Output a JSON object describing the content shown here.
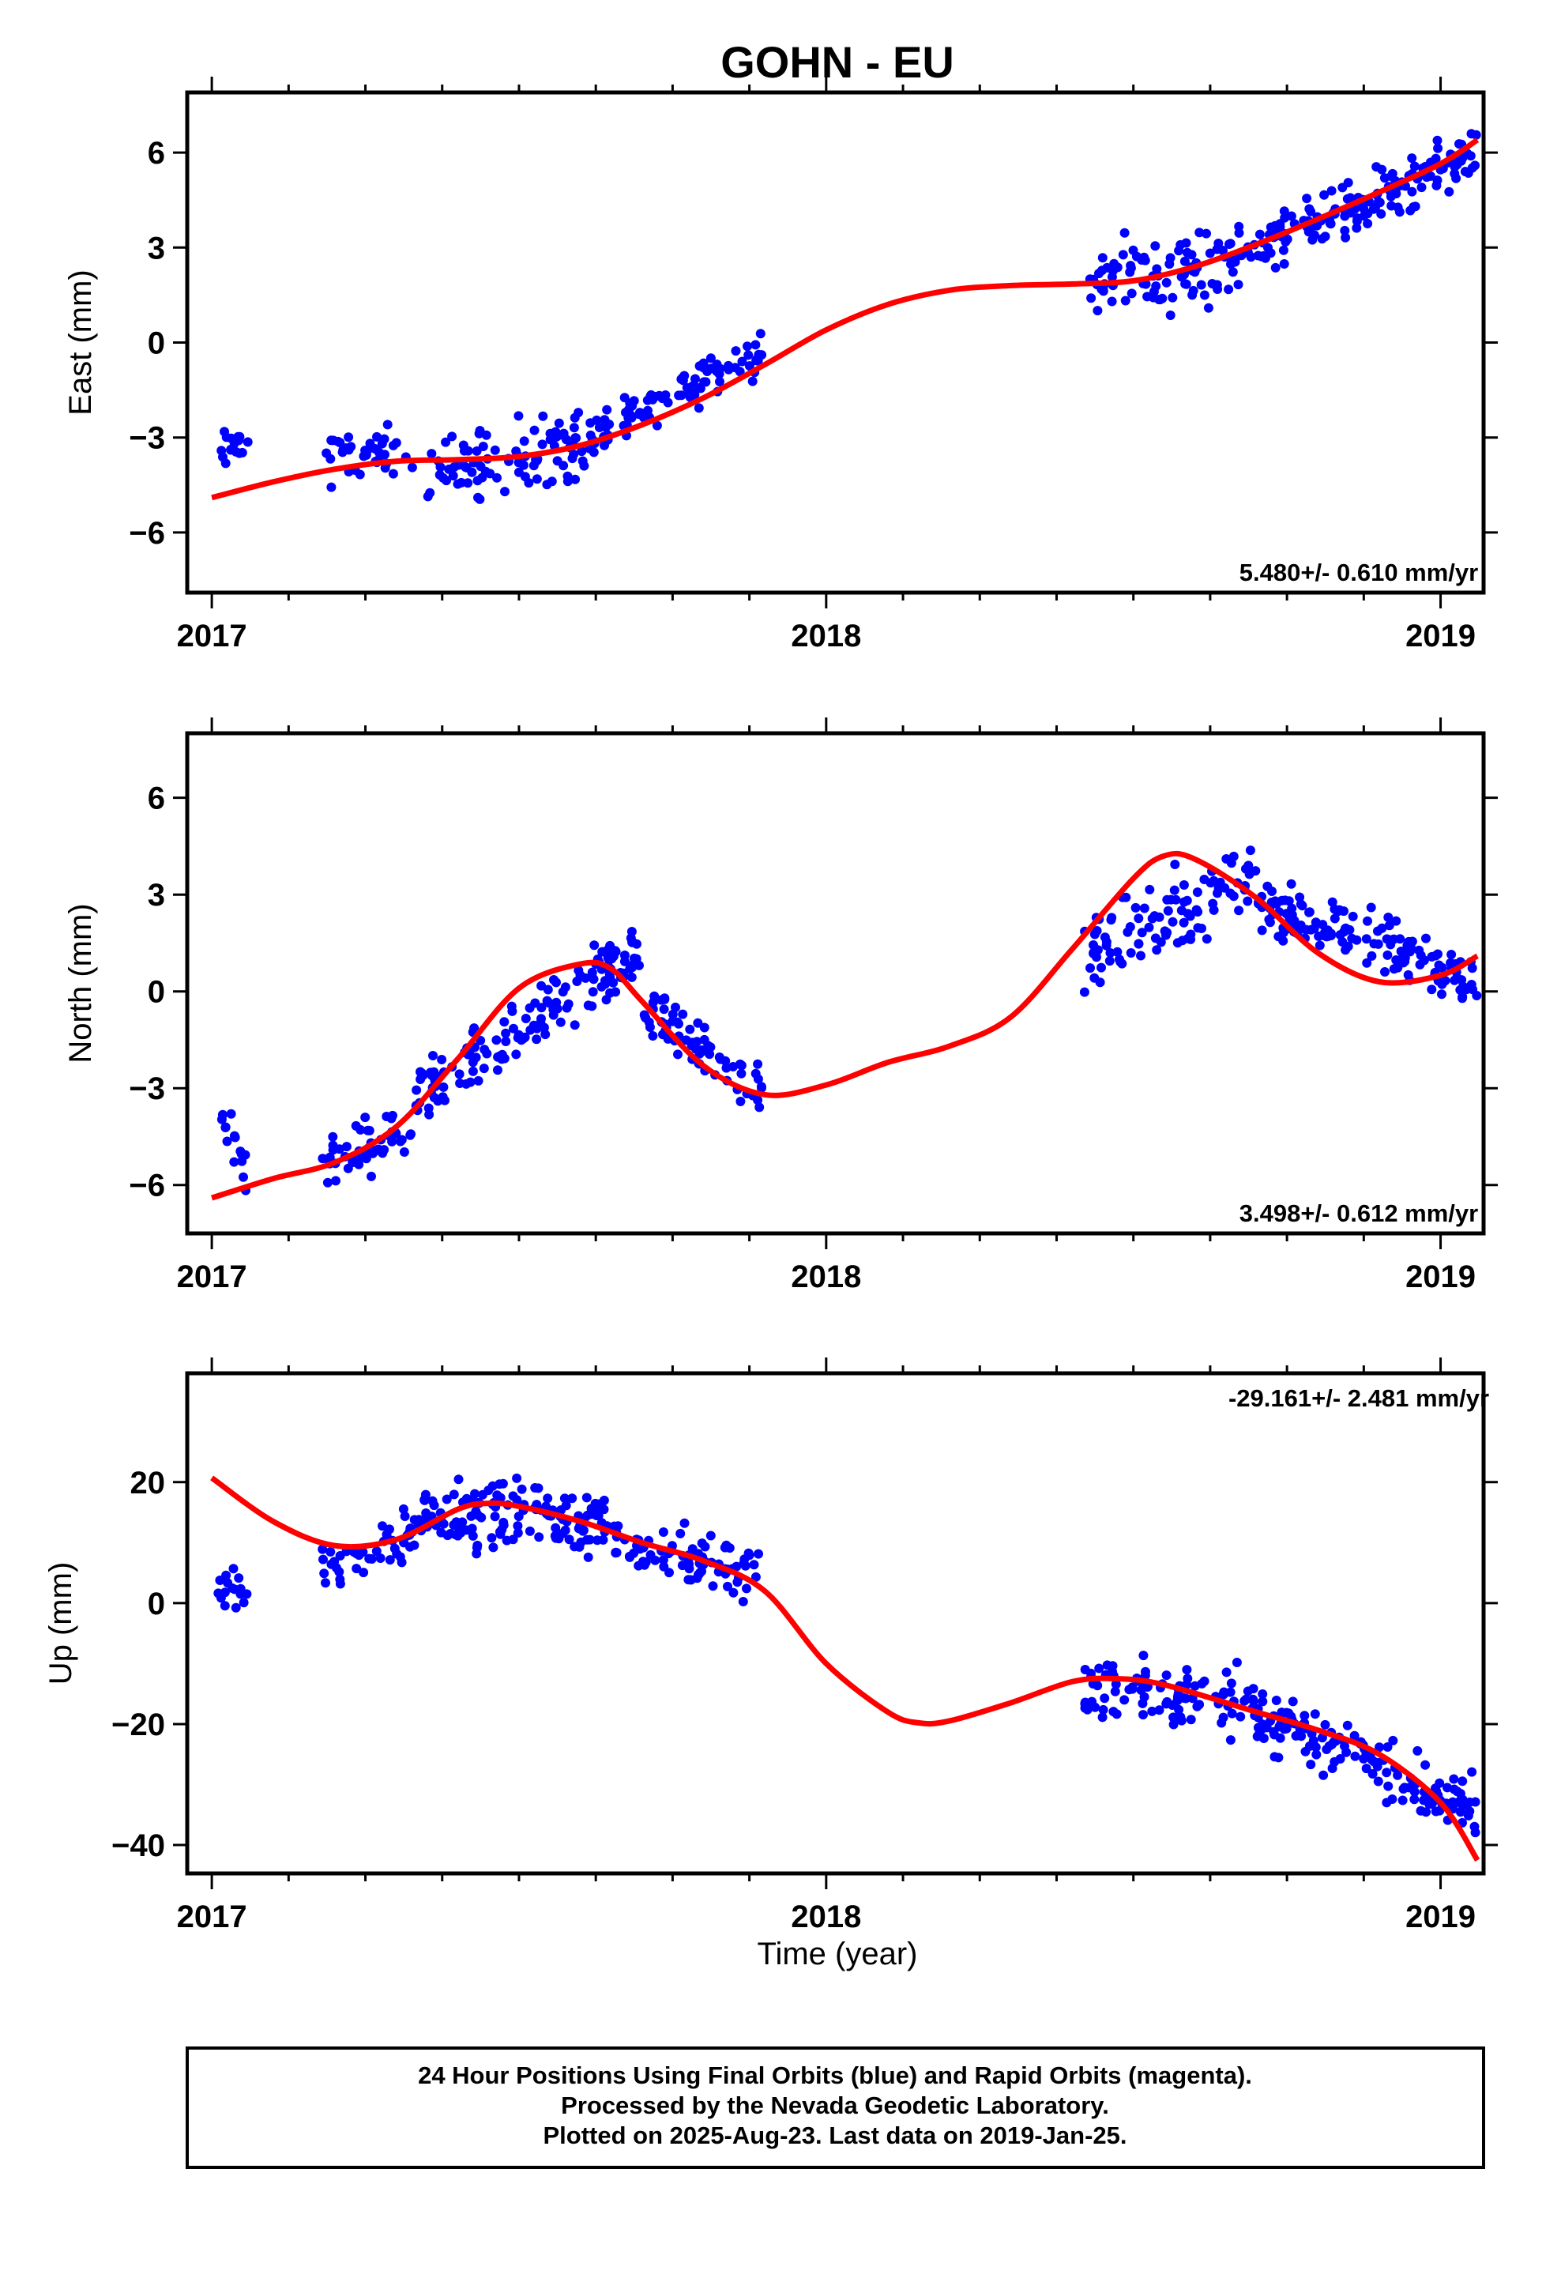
{
  "title": "GOHN - EU",
  "x_axis_label": "Time (year)",
  "footer": {
    "lines": [
      "24 Hour Positions Using Final Orbits (blue) and Rapid Orbits (magenta).",
      "Processed by the Nevada Geodetic Laboratory.",
      "Plotted on 2025-Aug-23. Last data on 2019-Jan-25."
    ]
  },
  "colors": {
    "final_orbits": "#0000ff",
    "fit_line": "#ff0000",
    "frame": "#000000"
  },
  "chart_data": [
    {
      "type": "scatter",
      "ylabel": "East (mm)",
      "rate_label": "5.480+/- 0.610 mm/yr",
      "xlim": [
        2016.96,
        2019.07
      ],
      "ylim": [
        -7.9,
        7.9
      ],
      "x_ticks": [
        2017,
        2018,
        2019
      ],
      "y_ticks": [
        -6,
        -3,
        0,
        3,
        6
      ],
      "grid": false,
      "series": [
        {
          "name": "Final Orbits",
          "kind": "points",
          "clusters": [
            {
              "t0": 2017.01,
              "t1": 2017.06,
              "n": 16,
              "y0": -3.5,
              "y1": -3.1,
              "amp": 0.9
            },
            {
              "t0": 2017.18,
              "t1": 2017.33,
              "n": 40,
              "y0": -3.7,
              "y1": -3.4,
              "amp": 1.2
            },
            {
              "t0": 2017.35,
              "t1": 2017.65,
              "n": 110,
              "y0": -4.2,
              "y1": -3.0,
              "amp": 1.6
            },
            {
              "t0": 2017.67,
              "t1": 2017.9,
              "n": 80,
              "y0": -2.3,
              "y1": -0.3,
              "amp": 1.0
            },
            {
              "t0": 2018.42,
              "t1": 2018.68,
              "n": 95,
              "y0": 2.0,
              "y1": 2.6,
              "amp": 1.7
            },
            {
              "t0": 2018.68,
              "t1": 2019.06,
              "n": 150,
              "y0": 2.8,
              "y1": 6.0,
              "amp": 1.2
            }
          ]
        },
        {
          "name": "Fit",
          "kind": "line",
          "x": [
            2017.0,
            2017.1,
            2017.2,
            2017.3,
            2017.4,
            2017.5,
            2017.6,
            2017.7,
            2017.8,
            2017.9,
            2018.0,
            2018.1,
            2018.2,
            2018.3,
            2018.4,
            2018.5,
            2018.6,
            2018.7,
            2018.8,
            2018.9,
            2019.0,
            2019.06
          ],
          "y": [
            -4.9,
            -4.4,
            -4.0,
            -3.75,
            -3.7,
            -3.6,
            -3.25,
            -2.6,
            -1.75,
            -0.7,
            0.4,
            1.2,
            1.65,
            1.8,
            1.85,
            1.95,
            2.4,
            3.1,
            3.9,
            4.75,
            5.65,
            6.4
          ]
        }
      ]
    },
    {
      "type": "scatter",
      "ylabel": "North (mm)",
      "rate_label": "3.498+/- 0.612 mm/yr",
      "xlim": [
        2016.96,
        2019.07
      ],
      "ylim": [
        -7.5,
        8.0
      ],
      "x_ticks": [
        2017,
        2018,
        2019
      ],
      "y_ticks": [
        -6,
        -3,
        0,
        3,
        6
      ],
      "grid": false,
      "series": [
        {
          "name": "Final Orbits",
          "kind": "points",
          "clusters": [
            {
              "t0": 2017.01,
              "t1": 2017.06,
              "n": 16,
              "y0": -3.5,
              "y1": -5.5,
              "amp": 1.2
            },
            {
              "t0": 2017.18,
              "t1": 2017.33,
              "n": 50,
              "y0": -5.4,
              "y1": -4.4,
              "amp": 1.2
            },
            {
              "t0": 2017.33,
              "t1": 2017.7,
              "n": 150,
              "y0": -3.5,
              "y1": 1.3,
              "amp": 1.5
            },
            {
              "t0": 2017.7,
              "t1": 2017.9,
              "n": 70,
              "y0": -0.3,
              "y1": -3.3,
              "amp": 1.3
            },
            {
              "t0": 2018.42,
              "t1": 2018.7,
              "n": 100,
              "y0": 1.0,
              "y1": 3.6,
              "amp": 1.8
            },
            {
              "t0": 2018.7,
              "t1": 2019.06,
              "n": 150,
              "y0": 2.8,
              "y1": 0.3,
              "amp": 1.3
            }
          ]
        },
        {
          "name": "Fit",
          "kind": "line",
          "x": [
            2017.0,
            2017.1,
            2017.2,
            2017.3,
            2017.4,
            2017.5,
            2017.6,
            2017.65,
            2017.7,
            2017.8,
            2017.9,
            2018.0,
            2018.1,
            2018.2,
            2018.3,
            2018.4,
            2018.5,
            2018.55,
            2018.6,
            2018.7,
            2018.8,
            2018.9,
            2019.0,
            2019.06
          ],
          "y": [
            -6.4,
            -5.8,
            -5.3,
            -4.2,
            -2.1,
            0.1,
            0.85,
            0.7,
            -0.3,
            -2.3,
            -3.2,
            -2.9,
            -2.2,
            -1.7,
            -0.8,
            1.3,
            3.5,
            4.2,
            4.1,
            2.9,
            1.2,
            0.3,
            0.5,
            1.1
          ]
        }
      ]
    },
    {
      "type": "scatter",
      "ylabel": "Up (mm)",
      "rate_label": "-29.161+/- 2.481 mm/yr",
      "xlim": [
        2016.96,
        2019.07
      ],
      "ylim": [
        -44.7,
        38.0
      ],
      "x_ticks": [
        2017,
        2018,
        2019
      ],
      "y_ticks": [
        -40,
        -20,
        0,
        20
      ],
      "grid": false,
      "series": [
        {
          "name": "Final Orbits",
          "kind": "points",
          "clusters": [
            {
              "t0": 2017.01,
              "t1": 2017.06,
              "n": 16,
              "y0": 3.0,
              "y1": 2.0,
              "amp": 6.0
            },
            {
              "t0": 2017.18,
              "t1": 2017.33,
              "n": 45,
              "y0": 6.0,
              "y1": 12.0,
              "amp": 7.0
            },
            {
              "t0": 2017.33,
              "t1": 2017.65,
              "n": 140,
              "y0": 14.0,
              "y1": 14.0,
              "amp": 9.0
            },
            {
              "t0": 2017.65,
              "t1": 2017.9,
              "n": 85,
              "y0": 10.0,
              "y1": 5.0,
              "amp": 7.0
            },
            {
              "t0": 2018.42,
              "t1": 2018.7,
              "n": 100,
              "y0": -14.0,
              "y1": -16.0,
              "amp": 8.0
            },
            {
              "t0": 2018.7,
              "t1": 2019.06,
              "n": 150,
              "y0": -19.0,
              "y1": -34.0,
              "amp": 7.0
            }
          ]
        },
        {
          "name": "Fit",
          "kind": "line",
          "x": [
            2017.0,
            2017.1,
            2017.2,
            2017.3,
            2017.4,
            2017.45,
            2017.5,
            2017.6,
            2017.7,
            2017.8,
            2017.9,
            2018.0,
            2018.1,
            2018.15,
            2018.2,
            2018.3,
            2018.4,
            2018.47,
            2018.55,
            2018.7,
            2018.8,
            2018.9,
            2019.0,
            2019.06
          ],
          "y": [
            20.7,
            13.5,
            9.5,
            10.5,
            15.5,
            16.5,
            16.0,
            13.5,
            10.0,
            7.0,
            2.0,
            -10.0,
            -18.0,
            -19.8,
            -19.5,
            -16.5,
            -13.0,
            -12.5,
            -13.5,
            -18.0,
            -21.0,
            -25.0,
            -33.0,
            -42.5
          ]
        }
      ]
    }
  ]
}
